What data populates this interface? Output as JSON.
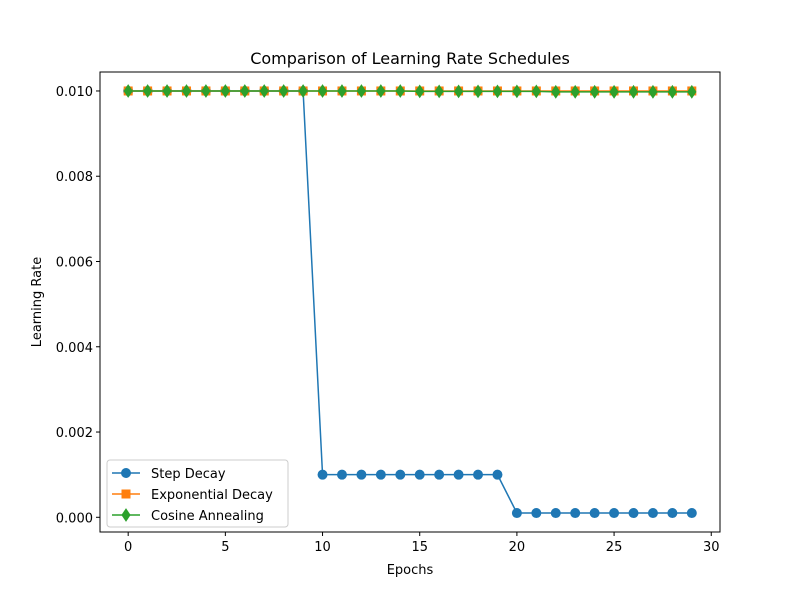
{
  "chart_data": {
    "type": "line",
    "title": "Comparison of Learning Rate Schedules",
    "xlabel": "Epochs",
    "ylabel": "Learning Rate",
    "xlim": [
      -1.45,
      30.45
    ],
    "ylim": [
      -0.000345,
      0.010445
    ],
    "xticks": [
      0,
      5,
      10,
      15,
      20,
      25,
      30
    ],
    "xtick_labels": [
      "0",
      "5",
      "10",
      "15",
      "20",
      "25",
      "30"
    ],
    "yticks": [
      0.0,
      0.002,
      0.004,
      0.006,
      0.008,
      0.01
    ],
    "ytick_labels": [
      "0.000",
      "0.002",
      "0.004",
      "0.006",
      "0.008",
      "0.010"
    ],
    "grid": false,
    "legend_position": "lower-left",
    "x": [
      0,
      1,
      2,
      3,
      4,
      5,
      6,
      7,
      8,
      9,
      10,
      11,
      12,
      13,
      14,
      15,
      16,
      17,
      18,
      19,
      20,
      21,
      22,
      23,
      24,
      25,
      26,
      27,
      28,
      29
    ],
    "series": [
      {
        "name": "Step Decay",
        "color": "#1f77b4",
        "marker": "circle",
        "values": [
          0.01,
          0.01,
          0.01,
          0.01,
          0.01,
          0.01,
          0.01,
          0.01,
          0.01,
          0.01,
          0.001,
          0.001,
          0.001,
          0.001,
          0.001,
          0.001,
          0.001,
          0.001,
          0.001,
          0.001,
          0.0001,
          0.0001,
          0.0001,
          0.0001,
          0.0001,
          0.0001,
          0.0001,
          0.0001,
          0.0001,
          0.0001
        ]
      },
      {
        "name": "Exponential Decay",
        "color": "#ff7f0e",
        "marker": "square",
        "values": [
          0.01,
          0.01,
          0.01,
          0.01,
          0.01,
          0.01,
          0.01,
          0.01,
          0.01,
          0.01,
          0.01,
          0.01,
          0.01,
          0.01,
          0.01,
          0.01,
          0.01,
          0.01,
          0.01,
          0.01,
          0.01,
          0.01,
          0.01,
          0.01,
          0.01,
          0.01,
          0.01,
          0.01,
          0.01,
          0.01
        ]
      },
      {
        "name": "Cosine Annealing",
        "color": "#2ca02c",
        "marker": "diamond",
        "values": [
          0.01,
          0.01,
          0.01,
          0.01,
          0.01,
          0.01,
          0.01,
          0.01,
          0.01,
          0.01,
          0.01,
          0.01,
          0.01,
          0.01,
          0.01,
          0.00999,
          0.00999,
          0.00999,
          0.00999,
          0.00999,
          0.00999,
          0.00999,
          0.00998,
          0.00998,
          0.00998,
          0.00998,
          0.00998,
          0.00998,
          0.00998,
          0.00998
        ]
      }
    ]
  }
}
